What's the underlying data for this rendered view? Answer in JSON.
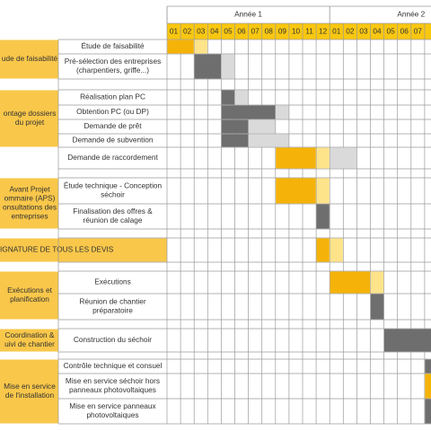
{
  "header": {
    "years": [
      "Année 1",
      "Année 2"
    ],
    "months": [
      "01",
      "02",
      "03",
      "04",
      "05",
      "06",
      "07",
      "08",
      "09",
      "10",
      "11",
      "12",
      "01",
      "02",
      "03",
      "04",
      "05",
      "06",
      "07",
      null
    ]
  },
  "phases": [
    {
      "label": [
        "ude de faisabilité"
      ],
      "tasks": [
        {
          "label": [
            "Étude de faisabilité"
          ],
          "schedule": [
            {
              "start": 0,
              "end": 1,
              "color": "#f5b30a"
            },
            {
              "start": 2,
              "end": 2,
              "color": "#fde38a"
            }
          ]
        },
        {
          "label": [
            "Pré-sélection des entreprises",
            "(charpentiers, griffe...)"
          ],
          "schedule": [
            {
              "start": 2,
              "end": 3,
              "color": "#6e6e6e"
            },
            {
              "start": 4,
              "end": 4,
              "color": "#dadada"
            }
          ]
        }
      ]
    },
    {
      "label": [
        "ontage dossiers",
        "du projet"
      ],
      "tasks": [
        {
          "label": [
            "Réalisation plan PC"
          ],
          "schedule": [
            {
              "start": 4,
              "end": 4,
              "color": "#6e6e6e"
            },
            {
              "start": 5,
              "end": 5,
              "color": "#dadada"
            }
          ]
        },
        {
          "label": [
            "Obtention PC (ou DP)"
          ],
          "schedule": [
            {
              "start": 4,
              "end": 7,
              "color": "#6e6e6e"
            },
            {
              "start": 8,
              "end": 8,
              "color": "#dadada"
            }
          ]
        },
        {
          "label": [
            "Demande de prêt"
          ],
          "schedule": [
            {
              "start": 4,
              "end": 5,
              "color": "#6e6e6e"
            },
            {
              "start": 6,
              "end": 7,
              "color": "#dadada"
            }
          ]
        },
        {
          "label": [
            "Demande de subvention"
          ],
          "schedule": [
            {
              "start": 4,
              "end": 5,
              "color": "#6e6e6e"
            },
            {
              "start": 6,
              "end": 8,
              "color": "#dadada"
            }
          ]
        }
      ]
    },
    {
      "tasks": [
        {
          "label": [
            "Demande de raccordement"
          ],
          "schedule": [
            {
              "start": 8,
              "end": 10,
              "color": "#f5b30a"
            },
            {
              "start": 11,
              "end": 11,
              "color": "#fde38a"
            },
            {
              "start": 12,
              "end": 13,
              "color": "#dadada"
            }
          ]
        }
      ]
    },
    {
      "label": [
        "Avant Projet",
        "ommaire (APS)",
        "onsultations des",
        "entreprises"
      ],
      "tasks": [
        {
          "label": [
            "Étude technique - Conception",
            "séchoir"
          ],
          "schedule": [
            {
              "start": 8,
              "end": 10,
              "color": "#f5b30a"
            },
            {
              "start": 11,
              "end": 11,
              "color": "#fde38a"
            }
          ]
        },
        {
          "label": [
            "Finalisation des offres &",
            "réunion de calage"
          ],
          "schedule": [
            {
              "start": 11,
              "end": 11,
              "color": "#6e6e6e"
            }
          ]
        }
      ]
    },
    {
      "label": [
        "IGNATURE DE TOUS LES DEVIS"
      ],
      "schedule": [
        {
          "start": 11,
          "end": 11,
          "color": "#f5b30a"
        },
        {
          "start": 12,
          "end": 12,
          "color": "#fde38a"
        }
      ]
    },
    {
      "label": [
        "Exécutions et",
        "planification"
      ],
      "tasks": [
        {
          "label": [
            "Exécutions"
          ],
          "schedule": [
            {
              "start": 12,
              "end": 14,
              "color": "#f5b30a"
            },
            {
              "start": 15,
              "end": 15,
              "color": "#fde38a"
            }
          ]
        },
        {
          "label": [
            "Réunion de chantier",
            "préparatoire"
          ],
          "schedule": [
            {
              "start": 15,
              "end": 15,
              "color": "#6e6e6e"
            }
          ]
        }
      ]
    },
    {
      "label": [
        "Coordination &",
        "uivi de chantier"
      ],
      "tasks": [
        {
          "label": [
            "Construction du séchoir"
          ],
          "schedule": [
            {
              "start": 16,
              "end": 19,
              "color": "#6e6e6e"
            }
          ]
        }
      ]
    },
    {
      "label": [
        "Mise en service",
        "de l'installation"
      ],
      "tasks": [
        {
          "label": [
            "Contrôle technique et consuel"
          ],
          "schedule": [
            {
              "start": 19,
              "end": 19,
              "color": "#6e6e6e"
            }
          ]
        },
        {
          "label": [
            "Mise en service séchoir hors",
            "panneaux photovoltaiques"
          ],
          "schedule": [
            {
              "start": 19,
              "end": 19,
              "color": "#f5b30a"
            }
          ]
        },
        {
          "label": [
            "Mise en service panneaux",
            "photovoltaiques"
          ],
          "schedule": [
            {
              "start": 19,
              "end": 19,
              "color": "#6e6e6e"
            }
          ]
        }
      ]
    }
  ]
}
